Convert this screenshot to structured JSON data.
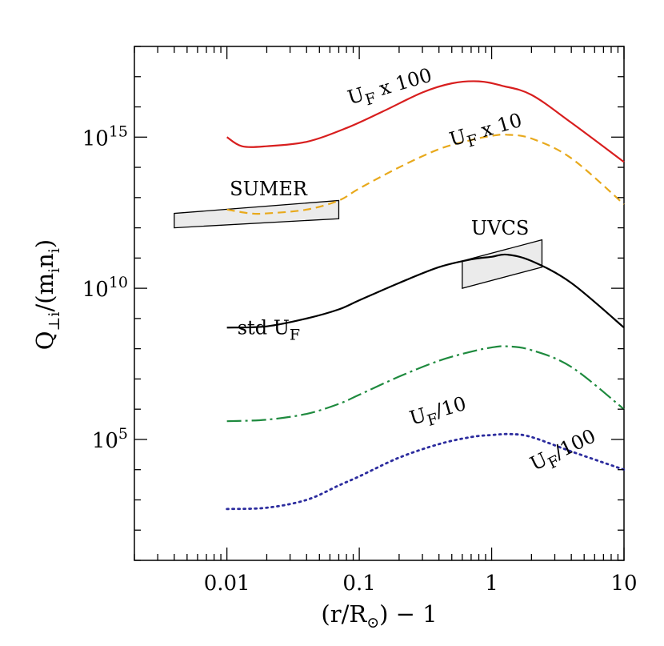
{
  "chart_data": {
    "type": "line",
    "xscale": "log",
    "yscale": "log",
    "xlim": [
      0.002,
      10
    ],
    "ylim": [
      10.0,
      1e+18
    ],
    "x_tick_labels": [
      {
        "x": 0.01,
        "label": "0.01"
      },
      {
        "x": 0.1,
        "label": "0.1"
      },
      {
        "x": 1,
        "label": "1"
      },
      {
        "x": 10,
        "label": "10"
      }
    ],
    "y_tick_labels": [
      {
        "y": 100000.0,
        "base": "10",
        "exp": "5"
      },
      {
        "y": 10000000000.0,
        "base": "10",
        "exp": "10"
      },
      {
        "y": 1000000000000000.0,
        "base": "10",
        "exp": "15"
      }
    ],
    "xlabel": {
      "pre": "(r/R",
      "sub": "⊙",
      "post": ")  −  1"
    },
    "ylabel": {
      "q": "Q",
      "sub1": "⊥i",
      "mid": "/(m",
      "sub2": "i",
      "n": "n",
      "sub3": "i",
      "close": ")"
    },
    "series": [
      {
        "id": "uf_x100",
        "color": "#d81e1e",
        "dash": "",
        "x": [
          0.01,
          0.013,
          0.02,
          0.04,
          0.08,
          0.15,
          0.3,
          0.5,
          0.8,
          1.2,
          2,
          4,
          10
        ],
        "y": [
          1000000000000000.0,
          500000000000000.0,
          500000000000000.0,
          700000000000000.0,
          2000000000000000.0,
          7000000000000000.0,
          3e+16,
          6e+16,
          7e+16,
          5e+16,
          2.5e+16,
          3000000000000000.0,
          150000000000000.0
        ]
      },
      {
        "id": "uf_x10",
        "color": "#e8a91c",
        "dash": "10,6",
        "x": [
          0.01,
          0.015,
          0.02,
          0.04,
          0.07,
          0.1,
          0.2,
          0.4,
          0.7,
          1,
          1.3,
          2,
          4,
          10
        ],
        "y": [
          4000000000000.0,
          3000000000000.0,
          3000000000000.0,
          4000000000000.0,
          8000000000000.0,
          20000000000000.0,
          100000000000000.0,
          400000000000000.0,
          800000000000000.0,
          1100000000000000.0,
          1200000000000000.0,
          900000000000000.0,
          200000000000000.0,
          6000000000000.0
        ]
      },
      {
        "id": "std_uf",
        "color": "#000000",
        "dash": "",
        "x": [
          0.01,
          0.02,
          0.04,
          0.07,
          0.1,
          0.2,
          0.4,
          0.7,
          1,
          1.3,
          2,
          4,
          10
        ],
        "y": [
          500000000.0,
          550000000.0,
          1000000000.0,
          2000000000.0,
          4000000000.0,
          15000000000.0,
          50000000000.0,
          90000000000.0,
          110000000000.0,
          130000000000.0,
          80000000000.0,
          15000000000.0,
          500000000.0
        ]
      },
      {
        "id": "uf_div10",
        "color": "#1e8a3e",
        "dash": "18,5,3,5",
        "x": [
          0.01,
          0.02,
          0.04,
          0.07,
          0.1,
          0.2,
          0.4,
          0.7,
          1,
          1.3,
          2,
          4,
          10
        ],
        "y": [
          400000.0,
          450000.0,
          700000.0,
          1500000.0,
          3000000.0,
          12000000.0,
          40000000.0,
          80000000.0,
          110000000.0,
          120000000.0,
          90000000.0,
          25000000.0,
          1000000.0
        ]
      },
      {
        "id": "uf_div100",
        "color": "#2c2c9e",
        "dash": "2,5",
        "x": [
          0.01,
          0.02,
          0.04,
          0.07,
          0.1,
          0.2,
          0.4,
          0.7,
          1,
          1.4,
          2,
          4,
          10
        ],
        "y": [
          500.0,
          550.0,
          1000.0,
          3000.0,
          6000.0,
          25000.0,
          70000.0,
          120000.0,
          140000.0,
          150000.0,
          120000.0,
          40000.0,
          10000.0
        ]
      }
    ],
    "bands": [
      {
        "id": "sumer",
        "label": "SUMER",
        "x": [
          0.004,
          0.07
        ],
        "top": [
          3000000000000.0,
          8000000000000.0
        ],
        "bottom": [
          1000000000000.0,
          2000000000000.0
        ]
      },
      {
        "id": "uvcs",
        "label": "UVCS",
        "x": [
          0.6,
          2.4
        ],
        "top": [
          80000000000.0,
          400000000000.0
        ],
        "bottom": [
          10000000000.0,
          50000000000.0
        ]
      }
    ],
    "curve_labels": [
      {
        "id": "lbl_uf_x100",
        "text_main": "U",
        "text_sub": "F",
        "text_rest": " x 100",
        "x": 0.085,
        "y": 1.2e+16,
        "angle": -16
      },
      {
        "id": "lbl_uf_x10",
        "text_main": "U",
        "text_sub": "F",
        "text_rest": " x 10",
        "x": 0.5,
        "y": 500000000000000.0,
        "angle": -16
      },
      {
        "id": "lbl_std_uf",
        "text_main": "std U",
        "text_sub": "F",
        "text_rest": "",
        "x": 0.012,
        "y": 300000000.0,
        "angle": 0
      },
      {
        "id": "lbl_uf_div10",
        "text_main": "U",
        "text_sub": "F",
        "text_rest": "/10",
        "x": 0.25,
        "y": 300000.0,
        "angle": -16
      },
      {
        "id": "lbl_uf_div100",
        "text_main": "U",
        "text_sub": "F",
        "text_rest": "/100",
        "x": 2.1,
        "y": 9000.0,
        "angle": -26
      }
    ],
    "band_label_positions": [
      {
        "id": "sumer",
        "x": 0.0105,
        "y": 12000000000000.0,
        "angle": 0
      },
      {
        "id": "uvcs",
        "x": 0.7,
        "y": 600000000000.0,
        "angle": 0
      }
    ],
    "grid": false,
    "legend": "none"
  }
}
